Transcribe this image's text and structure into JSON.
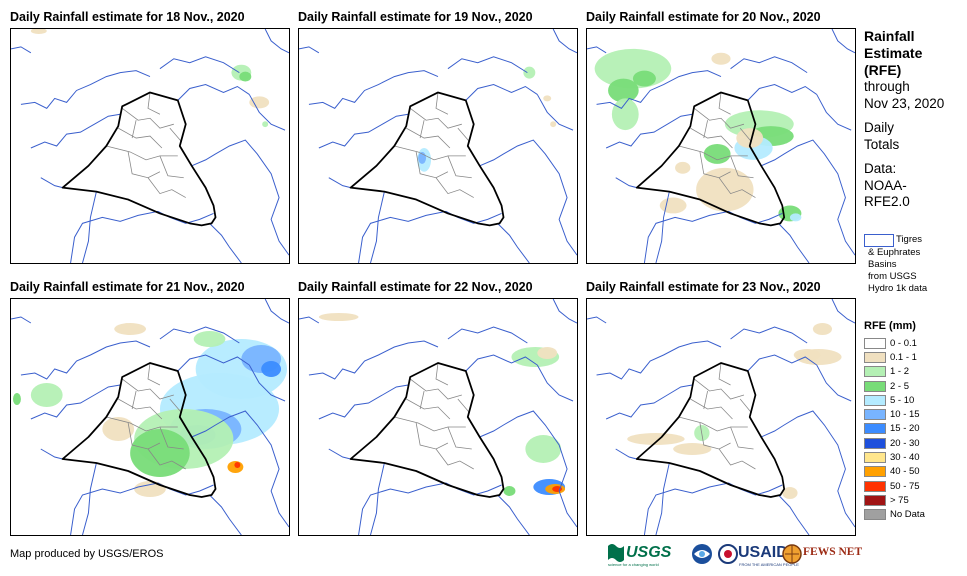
{
  "panels": [
    {
      "title": "Daily Rainfall estimate for 18 Nov., 2020"
    },
    {
      "title": "Daily Rainfall estimate for 19 Nov., 2020"
    },
    {
      "title": "Daily Rainfall estimate for 20 Nov., 2020"
    },
    {
      "title": "Daily Rainfall estimate for 21 Nov., 2020"
    },
    {
      "title": "Daily Rainfall estimate for 22 Nov., 2020"
    },
    {
      "title": "Daily Rainfall estimate for 23 Nov., 2020"
    }
  ],
  "side": {
    "l1": "Rainfall",
    "l2": "Estimate",
    "l3": "(RFE)",
    "l4": "through",
    "l5": "Nov 23, 2020",
    "l6": "Daily",
    "l7": "Totals",
    "l8": "Data:",
    "l9": "NOAA-",
    "l10": "RFE2.0"
  },
  "basin_key": {
    "l1": "Tigres",
    "l2": "& Euphrates",
    "l3": "Basins",
    "l4": "from USGS",
    "l5": "Hydro 1k data"
  },
  "legend": {
    "title": "RFE (mm)",
    "items": [
      {
        "label": "0 - 0.1",
        "color": "#ffffff"
      },
      {
        "label": "0.1 - 1",
        "color": "#f0e0c0"
      },
      {
        "label": "1 - 2",
        "color": "#b4f0b4"
      },
      {
        "label": "2 - 5",
        "color": "#78dc78"
      },
      {
        "label": "5 - 10",
        "color": "#b4ebff"
      },
      {
        "label": "10 - 15",
        "color": "#78b4ff"
      },
      {
        "label": "15 - 20",
        "color": "#3c8cff"
      },
      {
        "label": "20 - 30",
        "color": "#1e50dc"
      },
      {
        "label": "30 - 40",
        "color": "#ffe68c"
      },
      {
        "label": "40 - 50",
        "color": "#ffa000"
      },
      {
        "label": "50 - 75",
        "color": "#ff3200"
      },
      {
        "label": "> 75",
        "color": "#a01414"
      },
      {
        "label": "No Data",
        "color": "#a0a0a0"
      }
    ]
  },
  "footer": "Map produced by USGS/EROS",
  "logos": {
    "usgs": "USGS",
    "usgs_tag": "science for a changing world",
    "usaid": "USAID",
    "usaid_tag": "FROM THE AMERICAN PEOPLE",
    "fews": "FEWS NET"
  }
}
